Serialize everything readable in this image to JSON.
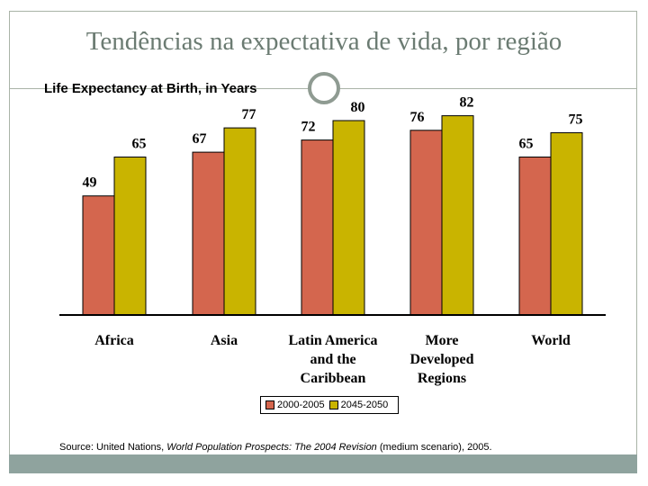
{
  "slide": {
    "title": "Tendências na expectativa de vida, por região"
  },
  "colors": {
    "series_2000": "#d4664e",
    "series_2045": "#c9b400",
    "footer": "#8fa39e"
  },
  "chart_data": {
    "type": "bar",
    "title": "Life Expectancy at Birth, in Years",
    "categories": [
      [
        "Africa"
      ],
      [
        "Asia"
      ],
      [
        "Latin America",
        "and the",
        "Caribbean"
      ],
      [
        "More",
        "Developed",
        "Regions"
      ],
      [
        "World"
      ]
    ],
    "series": [
      {
        "name": "2000-2005",
        "values": [
          49,
          67,
          72,
          76,
          65
        ]
      },
      {
        "name": "2045-2050",
        "values": [
          65,
          77,
          80,
          82,
          75
        ]
      }
    ],
    "ylim": [
      0,
      100
    ],
    "grid": false,
    "legend": "bottom-center",
    "source_prefix": "Source: United Nations, ",
    "source_title": "World Population Prospects: The 2004 Revision",
    "source_suffix": " (medium scenario), 2005."
  }
}
